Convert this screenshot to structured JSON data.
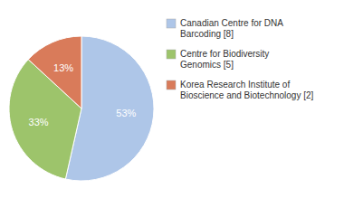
{
  "chart_data": {
    "type": "pie",
    "categories": [
      "Canadian Centre for DNA\nBarcoding [8]",
      "Centre for Biodiversity\nGenomics [5]",
      "Korea Research Institute of\nBioscience and Biotechnology [2]"
    ],
    "values": [
      53,
      33,
      13
    ],
    "value_labels": [
      "53%",
      "33%",
      "13%"
    ],
    "colors": [
      "#aec6e8",
      "#9dc46b",
      "#d97b5a"
    ],
    "data_labels": true,
    "legend": "right"
  }
}
